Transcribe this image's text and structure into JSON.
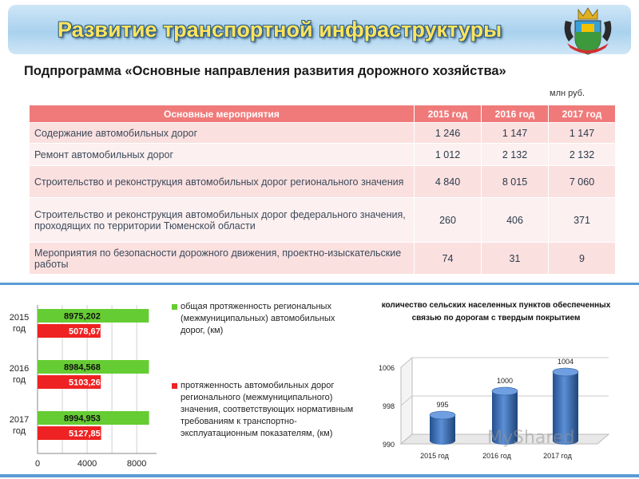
{
  "header": {
    "title": "Развитие транспортной инфраструктуры",
    "subtitle": "Подпрограмма «Основные направления развития дорожного хозяйства»",
    "unit": "млн руб.",
    "emblem_icon": "coat-of-arms-icon"
  },
  "table": {
    "columns": [
      "Основные мероприятия",
      "2015 год",
      "2016 год",
      "2017 год"
    ],
    "rows": [
      {
        "label": "Содержание автомобильных дорог",
        "v2015": "1 246",
        "v2016": "1 147",
        "v2017": "1 147"
      },
      {
        "label": "Ремонт автомобильных дорог",
        "v2015": "1 012",
        "v2016": "2 132",
        "v2017": "2 132"
      },
      {
        "label": "Строительство и реконструкция автомобильных дорог регионального значения",
        "v2015": "4 840",
        "v2016": "8 015",
        "v2017": "7 060"
      },
      {
        "label": "Строительство и реконструкция автомобильных дорог федерального  значения, проходящих по территории Тюменской области",
        "v2015": "260",
        "v2016": "406",
        "v2017": "371"
      },
      {
        "label": "Мероприятия по безопасности дорожного движения, проектно-изыскательские работы",
        "v2015": "74",
        "v2016": "31",
        "v2017": "9"
      }
    ]
  },
  "colors": {
    "header_red": "#f07a7a",
    "green_bar": "#66cc33",
    "red_bar": "#ee2222",
    "cylinder_blue": "#3a6fb5",
    "title_yellow": "#ffe45c"
  },
  "chart_data": [
    {
      "type": "bar",
      "orientation": "horizontal",
      "categories": [
        "2015 год",
        "2016 год",
        "2017 год"
      ],
      "series": [
        {
          "name": "общая протяженность региональных (межмуниципальных) автомобильных дорог, (км)",
          "values": [
            8975.202,
            8984.568,
            8994.953
          ],
          "labels": [
            "8975,202",
            "8984,568",
            "8994,953"
          ],
          "color": "#66cc33"
        },
        {
          "name": "протяженность автомобильных дорог регионального (межмуниципального) значения, соответствующих нормативным требованиям к транспортно-эксплуатационным показателям, (км)",
          "values": [
            5078.671,
            5103.261,
            5127.851
          ],
          "labels": [
            "5078,671",
            "5103,261",
            "5127,851"
          ],
          "color": "#ee2222"
        }
      ],
      "xticks": [
        "0",
        "4000",
        "8000"
      ],
      "xlim": [
        0,
        9600
      ],
      "grid": true,
      "legend": "right"
    },
    {
      "type": "bar",
      "style": "3d-cylinder",
      "title": "количество сельских населенных пунктов обеспеченных связью по дорогам с твердым покрытием",
      "categories": [
        "2015 год",
        "2016 год",
        "2017 год"
      ],
      "values": [
        995,
        1000,
        1004
      ],
      "yticks": [
        "990",
        "998",
        "1006"
      ],
      "ylim": [
        990,
        1006
      ],
      "grid": true
    }
  ],
  "watermark": "MyShared"
}
